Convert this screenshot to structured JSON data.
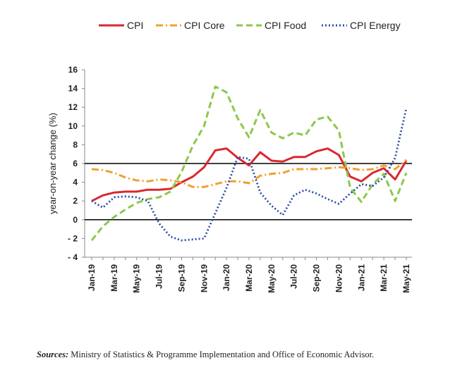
{
  "chart_data": {
    "type": "line",
    "title": "",
    "xlabel": "",
    "ylabel": "year-on-year change (%)",
    "ylim": [
      -4,
      16
    ],
    "yticks": [
      -4,
      -2,
      0,
      2,
      4,
      6,
      8,
      10,
      12,
      14,
      16
    ],
    "reference_lines": [
      0,
      6
    ],
    "legend_position": "top",
    "x": [
      "Jan-19",
      "Feb-19",
      "Mar-19",
      "Apr-19",
      "May-19",
      "Jun-19",
      "Jul-19",
      "Aug-19",
      "Sep-19",
      "Oct-19",
      "Nov-19",
      "Dec-19",
      "Jan-20",
      "Feb-20",
      "Mar-20",
      "Apr-20",
      "May-20",
      "Jun-20",
      "Jul-20",
      "Aug-20",
      "Sep-20",
      "Oct-20",
      "Nov-20",
      "Dec-20",
      "Jan-21",
      "Feb-21",
      "Mar-21",
      "Apr-21",
      "May-21"
    ],
    "x_tick_labels": [
      "Jan-19",
      "Mar-19",
      "May-19",
      "Jul-19",
      "Sep-19",
      "Nov-19",
      "Jan-20",
      "Mar-20",
      "May-20",
      "Jul-20",
      "Sep-20",
      "Nov-20",
      "Jan-21",
      "Mar-21",
      "May-21"
    ],
    "series": [
      {
        "name": "CPI",
        "style": "solid",
        "color": "#d9282f",
        "values": [
          2.0,
          2.6,
          2.9,
          3.0,
          3.0,
          3.2,
          3.2,
          3.3,
          4.0,
          4.6,
          5.6,
          7.4,
          7.6,
          6.6,
          5.8,
          7.2,
          6.3,
          6.2,
          6.7,
          6.7,
          7.3,
          7.6,
          6.9,
          4.6,
          4.1,
          5.0,
          5.5,
          4.3,
          6.3
        ]
      },
      {
        "name": "CPI Core",
        "style": "dashdot",
        "color": "#f0a030",
        "values": [
          5.4,
          5.3,
          5.0,
          4.5,
          4.2,
          4.1,
          4.3,
          4.2,
          4.0,
          3.5,
          3.5,
          3.8,
          4.1,
          4.1,
          3.9,
          4.7,
          4.9,
          5.0,
          5.4,
          5.4,
          5.4,
          5.5,
          5.6,
          5.5,
          5.3,
          5.4,
          5.8,
          5.4,
          6.4
        ]
      },
      {
        "name": "CPI Food",
        "style": "dashed",
        "color": "#8cc84b",
        "values": [
          -2.2,
          -0.7,
          0.3,
          1.1,
          1.8,
          2.2,
          2.4,
          3.0,
          5.1,
          7.9,
          10.0,
          14.2,
          13.6,
          10.8,
          8.8,
          11.7,
          9.3,
          8.7,
          9.3,
          9.0,
          10.7,
          11.0,
          9.5,
          3.4,
          1.9,
          3.8,
          4.9,
          2.0,
          5.0
        ]
      },
      {
        "name": "CPI Energy",
        "style": "dotted",
        "color": "#2a4fa8",
        "values": [
          2.0,
          1.3,
          2.4,
          2.5,
          2.4,
          2.0,
          -0.4,
          -1.8,
          -2.2,
          -2.1,
          -2.0,
          0.7,
          3.4,
          6.7,
          6.5,
          2.9,
          1.5,
          0.5,
          2.6,
          3.2,
          2.8,
          2.2,
          1.7,
          2.8,
          3.8,
          3.6,
          4.5,
          6.6,
          11.9
        ]
      }
    ]
  },
  "source": {
    "label": "Sources:",
    "text": " Ministry of Statistics & Programme Implementation and Office of Economic Advisor."
  }
}
